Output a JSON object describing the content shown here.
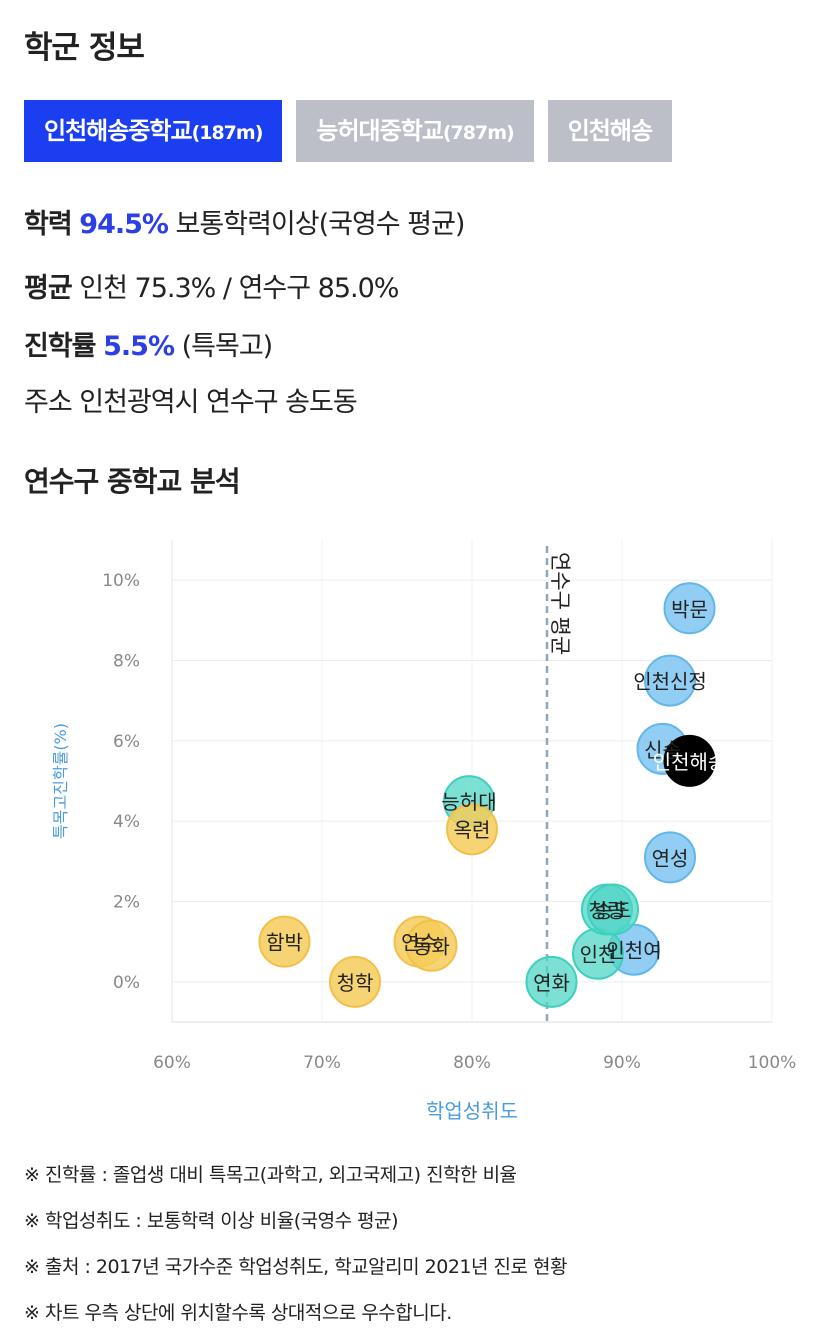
{
  "page": {
    "title": "학군 정보",
    "tabs": [
      {
        "name": "인천해송중학교",
        "distance": "(187m)"
      },
      {
        "name": "능허대중학교",
        "distance": "(787m)"
      },
      {
        "name": "인천해송",
        "distance": ""
      }
    ],
    "info": {
      "achievement": {
        "label": "학력",
        "value": "94.5%",
        "suffix": "보통학력이상(국영수 평균)"
      },
      "average": {
        "label": "평균",
        "text": "인천 75.3% / 연수구 85.0%"
      },
      "advancement": {
        "label": "진학률",
        "value": "5.5%",
        "suffix": "(특목고)"
      },
      "address": {
        "label": "주소",
        "text": "인천광역시 연수구 송도동"
      }
    },
    "section_title": "연수구 중학교 분석",
    "notes": [
      "※ 진학률 : 졸업생 대비 특목고(과학고, 외고국제고) 진학한 비율",
      "※ 학업성취도 : 보통학력 이상 비율(국영수 평균)",
      "※ 출처 : 2017년 국가수준 학업성취도, 학교알리미 2021년 진로 현황",
      "※ 차트 우측 상단에 위치할수록 상대적으로 우수합니다."
    ]
  },
  "chart_data": {
    "type": "scatter",
    "xlabel": "학업성취도",
    "ylabel": "특목고진학률(%)",
    "xlim": [
      60,
      100
    ],
    "ylim": [
      -1,
      11
    ],
    "x_ticks": [
      "60%",
      "70%",
      "80%",
      "90%",
      "100%"
    ],
    "y_ticks": [
      "0%",
      "2%",
      "4%",
      "6%",
      "8%",
      "10%"
    ],
    "reference_line": {
      "x": 85.0,
      "label": "연수구 평균"
    },
    "colors": {
      "gray": "#e0a800",
      "teal": "#2ec9b5",
      "blue": "#4aa8e6",
      "selected": "#000000"
    },
    "points": [
      {
        "label": "박문",
        "x": 94.5,
        "y": 9.3,
        "group": "blue"
      },
      {
        "label": "인천신정",
        "x": 93.2,
        "y": 7.5,
        "group": "blue"
      },
      {
        "label": "신송",
        "x": 92.7,
        "y": 5.8,
        "group": "blue"
      },
      {
        "label": "인천해송",
        "x": 94.5,
        "y": 5.5,
        "group": "selected"
      },
      {
        "label": "연성",
        "x": 93.2,
        "y": 3.1,
        "group": "blue"
      },
      {
        "label": "인천여",
        "x": 90.8,
        "y": 0.8,
        "group": "blue"
      },
      {
        "label": "인천",
        "x": 88.4,
        "y": 0.7,
        "group": "teal"
      },
      {
        "label": "청량",
        "x": 89.0,
        "y": 1.8,
        "group": "teal"
      },
      {
        "label": "송도",
        "x": 89.4,
        "y": 1.8,
        "group": "teal"
      },
      {
        "label": "연화",
        "x": 85.3,
        "y": 0.0,
        "group": "teal"
      },
      {
        "label": "능허대",
        "x": 79.8,
        "y": 4.5,
        "group": "teal"
      },
      {
        "label": "옥련",
        "x": 80.0,
        "y": 3.8,
        "group": "gray"
      },
      {
        "label": "함박",
        "x": 67.5,
        "y": 1.0,
        "group": "gray"
      },
      {
        "label": "청학",
        "x": 72.2,
        "y": 0.0,
        "group": "gray"
      },
      {
        "label": "연수",
        "x": 76.5,
        "y": 1.0,
        "group": "gray"
      },
      {
        "label": "동화",
        "x": 77.3,
        "y": 0.9,
        "group": "gray"
      }
    ]
  }
}
